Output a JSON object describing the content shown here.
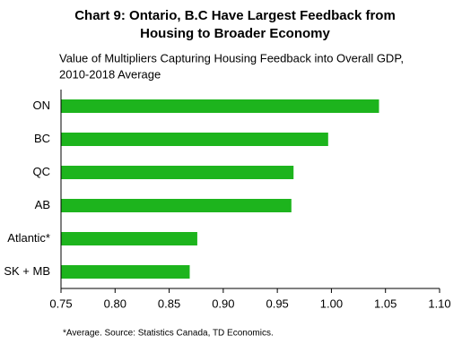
{
  "chart_data": {
    "type": "barh",
    "title": [
      "Chart 9: Ontario, B.C Have Largest Feedback from",
      "Housing to Broader Economy"
    ],
    "subtitle": [
      "Value of Multipliers Capturing Housing Feedback into Overall GDP,",
      "2010-2018 Average"
    ],
    "categories": [
      "ON",
      "BC",
      "QC",
      "AB",
      "Atlantic*",
      "SK + MB"
    ],
    "values": [
      1.044,
      0.997,
      0.965,
      0.963,
      0.876,
      0.869
    ],
    "color": "#1db41d",
    "xlim": [
      0.75,
      1.1
    ],
    "xticks": [
      0.75,
      {
        "value": 0.8,
        "label": "0.80"
      },
      0.85,
      {
        "value": 0.9,
        "label": "0.90"
      },
      0.95,
      {
        "value": 1.0,
        "label": "1.00"
      },
      1.05,
      {
        "value": 1.1,
        "label": "1.10"
      }
    ],
    "note": "*Average. Source: Statistics Canada,  TD Economics."
  }
}
